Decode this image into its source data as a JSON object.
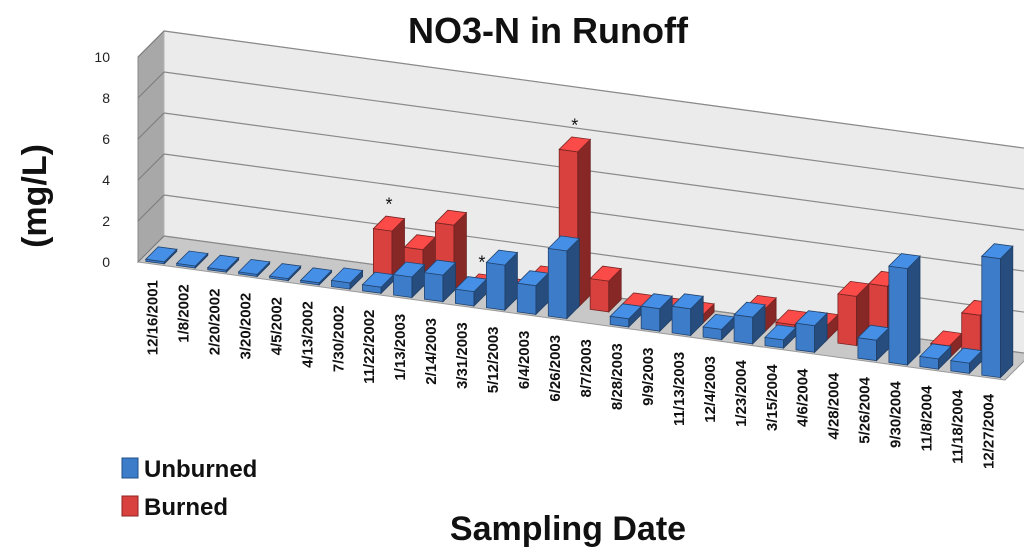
{
  "chart_data": {
    "type": "bar",
    "title": "NO3-N  in Runoff",
    "xlabel": "Sampling Date",
    "ylabel": "(mg/L)",
    "ylim": [
      0,
      10
    ],
    "yticks": [
      "0",
      "2",
      "4",
      "6",
      "8",
      "10"
    ],
    "grid": true,
    "legend_position": "bottom-left",
    "categories": [
      "12/16/2001",
      "1/8/2002",
      "2/20/2002",
      "3/20/2002",
      "4/5/2002",
      "4/13/2002",
      "7/30/2002",
      "11/22/2002",
      "1/13/2003",
      "2/14/2003",
      "3/31/2003",
      "5/12/2003",
      "6/4/2003",
      "6/26/2003",
      "8/7/2003",
      "8/28/2003",
      "9/9/2003",
      "11/13/2003",
      "12/4/2003",
      "1/23/2004",
      "3/15/2004",
      "4/6/2004",
      "4/28/2004",
      "5/26/2004",
      "9/30/2004",
      "11/8/2004",
      "11/18/2004",
      "12/27/2004"
    ],
    "series": [
      {
        "name": "Unburned",
        "color": "#3d7cc9",
        "values": [
          0.1,
          0.1,
          0.1,
          0.1,
          0.1,
          0.1,
          0.3,
          0.3,
          1.0,
          1.3,
          0.7,
          2.2,
          1.4,
          3.3,
          0,
          0.4,
          1.1,
          1.3,
          0.5,
          1.3,
          0.4,
          1.3,
          0,
          1.0,
          4.7,
          0.5,
          0.5,
          5.8
        ]
      },
      {
        "name": "Burned",
        "color": "#d9413f",
        "values": [
          0,
          0,
          0,
          0,
          0,
          0,
          0,
          2.5,
          1.8,
          3.2,
          0.3,
          0.3,
          1.1,
          7.6,
          1.5,
          0.4,
          0.4,
          0.4,
          0,
          1.1,
          0.6,
          0.7,
          2.4,
          3.1,
          0,
          0.6,
          2.3,
          0
        ]
      }
    ],
    "annotations": [
      {
        "text": "*",
        "category": "11/22/2002",
        "series": "Burned"
      },
      {
        "text": "*",
        "category": "3/31/2003",
        "series": "Burned"
      },
      {
        "text": "*",
        "category": "6/26/2003",
        "series": "Burned"
      }
    ]
  }
}
